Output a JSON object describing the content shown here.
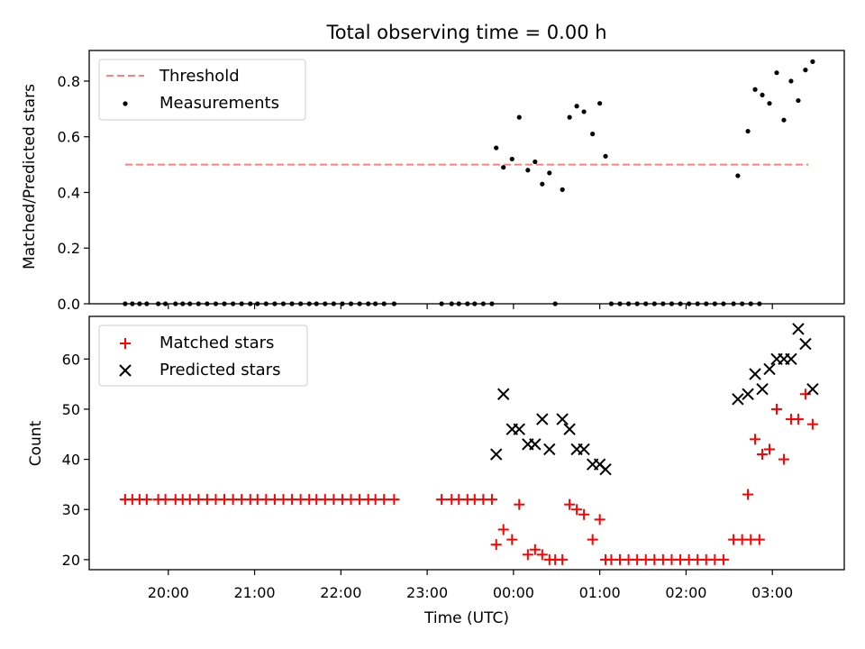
{
  "chart_data": [
    {
      "type": "scatter",
      "title": "Total observing time = 0.00 h",
      "xlabel": "",
      "ylabel": "Matched/Predicted stars",
      "ylim": [
        0,
        0.91
      ],
      "yticks": [
        0.0,
        0.2,
        0.4,
        0.6,
        0.8
      ],
      "ytick_labels": [
        "0.0",
        "0.2",
        "0.4",
        "0.6",
        "0.8"
      ],
      "legend_position": "top-left",
      "grid": false,
      "series": [
        {
          "name": "Threshold",
          "style": "dashed-line",
          "color": "#ff7f7f",
          "points": [
            [
              "19:30",
              0.5
            ],
            [
              "03:25",
              0.5
            ]
          ]
        },
        {
          "name": "Measurements",
          "style": "dot",
          "color": "#000000",
          "points": [
            [
              "19:30",
              0
            ],
            [
              "19:35",
              0
            ],
            [
              "19:40",
              0
            ],
            [
              "19:45",
              0
            ],
            [
              "19:53",
              0
            ],
            [
              "19:58",
              0
            ],
            [
              "20:05",
              0
            ],
            [
              "20:10",
              0
            ],
            [
              "20:15",
              0
            ],
            [
              "20:21",
              0
            ],
            [
              "20:27",
              0
            ],
            [
              "20:33",
              0
            ],
            [
              "20:39",
              0
            ],
            [
              "20:45",
              0
            ],
            [
              "20:51",
              0
            ],
            [
              "20:57",
              0
            ],
            [
              "21:02",
              0
            ],
            [
              "21:08",
              0
            ],
            [
              "21:14",
              0
            ],
            [
              "21:20",
              0
            ],
            [
              "21:26",
              0
            ],
            [
              "21:32",
              0
            ],
            [
              "21:38",
              0
            ],
            [
              "21:43",
              0
            ],
            [
              "21:49",
              0
            ],
            [
              "21:55",
              0
            ],
            [
              "22:01",
              0
            ],
            [
              "22:07",
              0
            ],
            [
              "22:13",
              0
            ],
            [
              "22:19",
              0
            ],
            [
              "22:24",
              0
            ],
            [
              "22:30",
              0
            ],
            [
              "22:37",
              0
            ],
            [
              "23:10",
              0
            ],
            [
              "23:17",
              0
            ],
            [
              "23:22",
              0
            ],
            [
              "23:28",
              0
            ],
            [
              "23:33",
              0
            ],
            [
              "23:39",
              0
            ],
            [
              "23:45",
              0
            ],
            [
              "23:48",
              0.56
            ],
            [
              "23:53",
              0.49
            ],
            [
              "23:59",
              0.52
            ],
            [
              "00:04",
              0.67
            ],
            [
              "00:10",
              0.48
            ],
            [
              "00:15",
              0.51
            ],
            [
              "00:20",
              0.43
            ],
            [
              "00:25",
              0.47
            ],
            [
              "00:29",
              0
            ],
            [
              "00:34",
              0.41
            ],
            [
              "00:39",
              0.67
            ],
            [
              "00:44",
              0.71
            ],
            [
              "00:49",
              0.69
            ],
            [
              "00:55",
              0.61
            ],
            [
              "01:00",
              0.72
            ],
            [
              "01:04",
              0.53
            ],
            [
              "01:08",
              0
            ],
            [
              "01:14",
              0
            ],
            [
              "01:20",
              0
            ],
            [
              "01:26",
              0
            ],
            [
              "01:32",
              0
            ],
            [
              "01:38",
              0
            ],
            [
              "01:44",
              0
            ],
            [
              "01:50",
              0
            ],
            [
              "01:56",
              0
            ],
            [
              "02:02",
              0
            ],
            [
              "02:08",
              0
            ],
            [
              "02:14",
              0
            ],
            [
              "02:20",
              0
            ],
            [
              "02:26",
              0
            ],
            [
              "02:33",
              0
            ],
            [
              "02:39",
              0
            ],
            [
              "02:45",
              0
            ],
            [
              "02:51",
              0
            ],
            [
              "02:36",
              0.46
            ],
            [
              "02:43",
              0.62
            ],
            [
              "02:48",
              0.77
            ],
            [
              "02:53",
              0.75
            ],
            [
              "02:58",
              0.72
            ],
            [
              "03:03",
              0.83
            ],
            [
              "03:08",
              0.66
            ],
            [
              "03:13",
              0.8
            ],
            [
              "03:18",
              0.73
            ],
            [
              "03:23",
              0.84
            ],
            [
              "03:28",
              0.87
            ]
          ]
        }
      ]
    },
    {
      "type": "scatter",
      "title": "",
      "xlabel": "Time (UTC)",
      "ylabel": "Count",
      "ylim": [
        18,
        68.5
      ],
      "yticks": [
        20,
        30,
        40,
        50,
        60
      ],
      "ytick_labels": [
        "20",
        "30",
        "40",
        "50",
        "60"
      ],
      "xlim": [
        "19:05",
        "03:50"
      ],
      "xticks": [
        "20:00",
        "21:00",
        "22:00",
        "23:00",
        "00:00",
        "01:00",
        "02:00",
        "03:00"
      ],
      "legend_position": "top-left",
      "grid": false,
      "series": [
        {
          "name": "Matched stars",
          "style": "plus",
          "color": "#ff0000",
          "points": [
            [
              "19:30",
              32
            ],
            [
              "19:35",
              32
            ],
            [
              "19:40",
              32
            ],
            [
              "19:45",
              32
            ],
            [
              "19:53",
              32
            ],
            [
              "19:58",
              32
            ],
            [
              "20:05",
              32
            ],
            [
              "20:10",
              32
            ],
            [
              "20:15",
              32
            ],
            [
              "20:21",
              32
            ],
            [
              "20:27",
              32
            ],
            [
              "20:33",
              32
            ],
            [
              "20:39",
              32
            ],
            [
              "20:45",
              32
            ],
            [
              "20:51",
              32
            ],
            [
              "20:57",
              32
            ],
            [
              "21:02",
              32
            ],
            [
              "21:08",
              32
            ],
            [
              "21:14",
              32
            ],
            [
              "21:20",
              32
            ],
            [
              "21:26",
              32
            ],
            [
              "21:32",
              32
            ],
            [
              "21:38",
              32
            ],
            [
              "21:43",
              32
            ],
            [
              "21:49",
              32
            ],
            [
              "21:55",
              32
            ],
            [
              "22:01",
              32
            ],
            [
              "22:07",
              32
            ],
            [
              "22:13",
              32
            ],
            [
              "22:19",
              32
            ],
            [
              "22:24",
              32
            ],
            [
              "22:30",
              32
            ],
            [
              "22:37",
              32
            ],
            [
              "23:10",
              32
            ],
            [
              "23:17",
              32
            ],
            [
              "23:22",
              32
            ],
            [
              "23:28",
              32
            ],
            [
              "23:33",
              32
            ],
            [
              "23:39",
              32
            ],
            [
              "23:45",
              32
            ],
            [
              "23:48",
              23
            ],
            [
              "23:53",
              26
            ],
            [
              "23:59",
              24
            ],
            [
              "00:04",
              31
            ],
            [
              "00:10",
              21
            ],
            [
              "00:15",
              22
            ],
            [
              "00:20",
              21
            ],
            [
              "00:25",
              20
            ],
            [
              "00:29",
              20
            ],
            [
              "00:34",
              20
            ],
            [
              "00:39",
              31
            ],
            [
              "00:44",
              30
            ],
            [
              "00:49",
              29
            ],
            [
              "00:55",
              24
            ],
            [
              "01:00",
              28
            ],
            [
              "01:04",
              20
            ],
            [
              "01:08",
              20
            ],
            [
              "01:14",
              20
            ],
            [
              "01:20",
              20
            ],
            [
              "01:26",
              20
            ],
            [
              "01:32",
              20
            ],
            [
              "01:38",
              20
            ],
            [
              "01:44",
              20
            ],
            [
              "01:50",
              20
            ],
            [
              "01:56",
              20
            ],
            [
              "02:02",
              20
            ],
            [
              "02:08",
              20
            ],
            [
              "02:14",
              20
            ],
            [
              "02:20",
              20
            ],
            [
              "02:26",
              20
            ],
            [
              "02:33",
              24
            ],
            [
              "02:39",
              24
            ],
            [
              "02:45",
              24
            ],
            [
              "02:51",
              24
            ],
            [
              "02:43",
              33
            ],
            [
              "02:48",
              44
            ],
            [
              "02:53",
              41
            ],
            [
              "02:58",
              42
            ],
            [
              "03:03",
              50
            ],
            [
              "03:08",
              40
            ],
            [
              "03:13",
              48
            ],
            [
              "03:18",
              48
            ],
            [
              "03:23",
              53
            ],
            [
              "03:28",
              47
            ]
          ]
        },
        {
          "name": "Predicted stars",
          "style": "x",
          "color": "#000000",
          "points": [
            [
              "23:48",
              41
            ],
            [
              "23:53",
              53
            ],
            [
              "23:59",
              46
            ],
            [
              "00:04",
              46
            ],
            [
              "00:10",
              43
            ],
            [
              "00:15",
              43
            ],
            [
              "00:20",
              48
            ],
            [
              "00:25",
              42
            ],
            [
              "00:34",
              48
            ],
            [
              "00:39",
              46
            ],
            [
              "00:44",
              42
            ],
            [
              "00:49",
              42
            ],
            [
              "00:55",
              39
            ],
            [
              "01:00",
              39
            ],
            [
              "01:04",
              38
            ],
            [
              "02:36",
              52
            ],
            [
              "02:43",
              53
            ],
            [
              "02:48",
              57
            ],
            [
              "02:53",
              54
            ],
            [
              "02:58",
              58
            ],
            [
              "03:03",
              60
            ],
            [
              "03:08",
              60
            ],
            [
              "03:13",
              60
            ],
            [
              "03:18",
              66
            ],
            [
              "03:23",
              63
            ],
            [
              "03:28",
              54
            ]
          ]
        }
      ]
    }
  ]
}
